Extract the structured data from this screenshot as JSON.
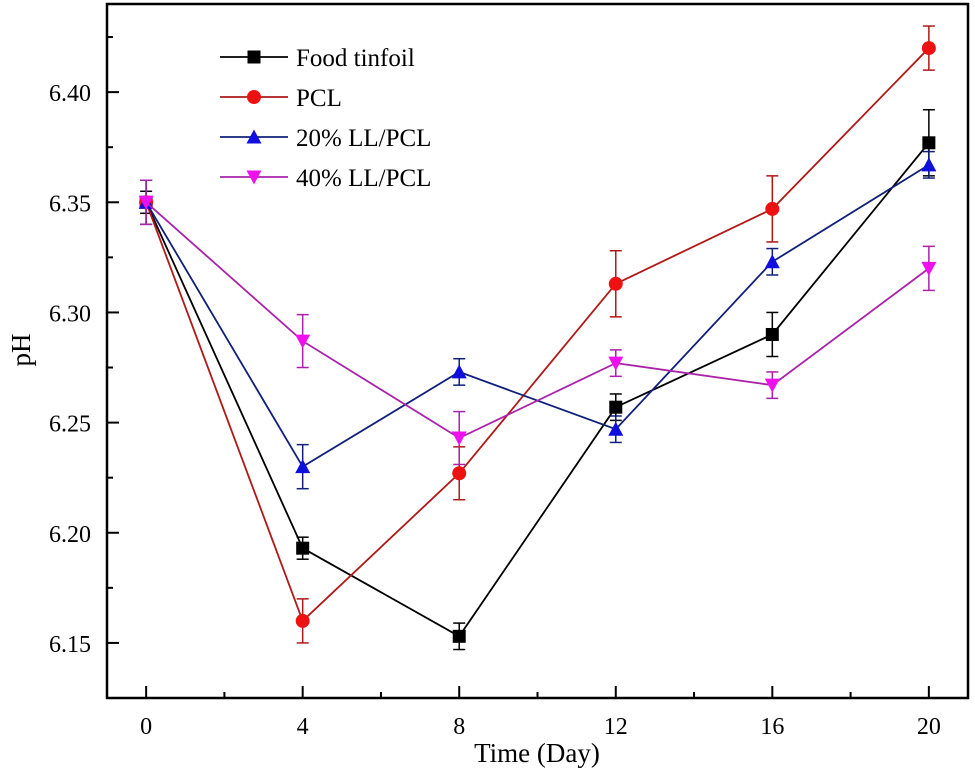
{
  "chart_data": {
    "type": "line",
    "title": "",
    "xlabel": "Time (Day)",
    "ylabel": "pH",
    "xlim": [
      -1,
      21
    ],
    "ylim": [
      6.125,
      6.44
    ],
    "xticks": [
      0,
      4,
      8,
      12,
      16,
      20
    ],
    "xtick_labels": [
      "0",
      "4",
      "8",
      "12",
      "16",
      "20"
    ],
    "yticks": [
      6.15,
      6.2,
      6.25,
      6.3,
      6.35,
      6.4
    ],
    "ytick_labels": [
      "6.15",
      "6.20",
      "6.25",
      "6.30",
      "6.35",
      "6.40"
    ],
    "grid": false,
    "legend_position": "top-left",
    "x": [
      0,
      4,
      8,
      12,
      16,
      20
    ],
    "series": [
      {
        "name": "Food tinfoil",
        "color": "#000000",
        "line_color": "#000000",
        "marker": "square",
        "values": [
          6.35,
          6.193,
          6.153,
          6.257,
          6.29,
          6.377
        ],
        "errors": [
          0.005,
          0.005,
          0.006,
          0.006,
          0.01,
          0.015
        ]
      },
      {
        "name": "PCL",
        "color": "#ee1111",
        "line_color": "#b01818",
        "marker": "circle",
        "values": [
          6.35,
          6.16,
          6.227,
          6.313,
          6.347,
          6.42
        ],
        "errors": [
          0.01,
          0.01,
          0.012,
          0.015,
          0.015,
          0.01
        ]
      },
      {
        "name": "20% LL/PCL",
        "color": "#1010dd",
        "line_color": "#10207a",
        "marker": "triangle-up",
        "values": [
          6.35,
          6.23,
          6.273,
          6.247,
          6.323,
          6.367
        ],
        "errors": [
          0.01,
          0.01,
          0.006,
          0.006,
          0.006,
          0.006
        ]
      },
      {
        "name": "40% LL/PCL",
        "color": "#ee11ee",
        "line_color": "#aa22aa",
        "marker": "triangle-down",
        "values": [
          6.35,
          6.287,
          6.243,
          6.277,
          6.267,
          6.32
        ],
        "errors": [
          0.01,
          0.012,
          0.012,
          0.006,
          0.006,
          0.01
        ]
      }
    ]
  }
}
